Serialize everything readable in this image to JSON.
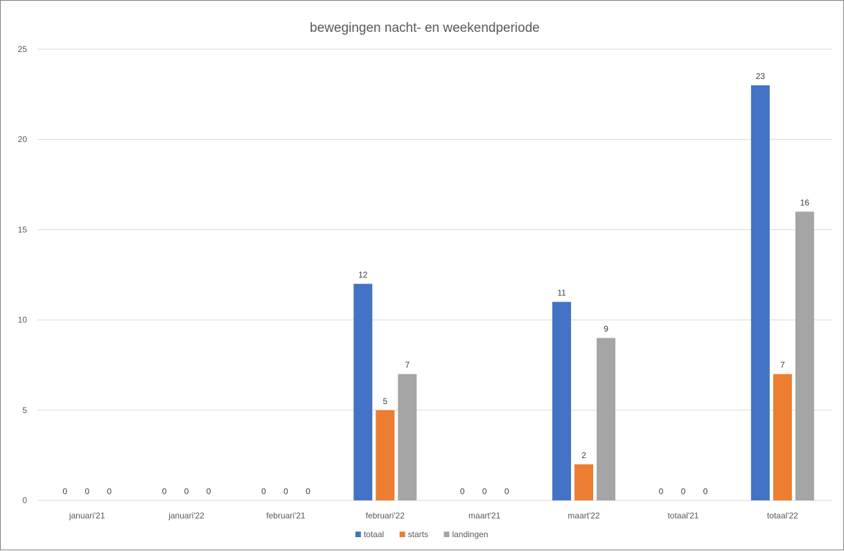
{
  "chart_data": {
    "type": "bar",
    "title": "bewegingen nacht- en weekendperiode",
    "xlabel": "",
    "ylabel": "",
    "ylim": [
      0,
      25
    ],
    "yticks": [
      0,
      5,
      10,
      15,
      20,
      25
    ],
    "categories": [
      "januari'21",
      "januari'22",
      "februari'21",
      "februari'22",
      "maart'21",
      "maart'22",
      "totaal'21",
      "totaal'22"
    ],
    "series": [
      {
        "name": "totaal",
        "color": "#4472C4",
        "values": [
          0,
          0,
          0,
          12,
          0,
          11,
          0,
          23
        ]
      },
      {
        "name": "starts",
        "color": "#ED7D31",
        "values": [
          0,
          0,
          0,
          5,
          0,
          2,
          0,
          7
        ]
      },
      {
        "name": "landingen",
        "color": "#A5A5A5",
        "values": [
          0,
          0,
          0,
          7,
          0,
          9,
          0,
          16
        ]
      }
    ],
    "grid": true,
    "legend_position": "bottom",
    "data_labels": true
  }
}
